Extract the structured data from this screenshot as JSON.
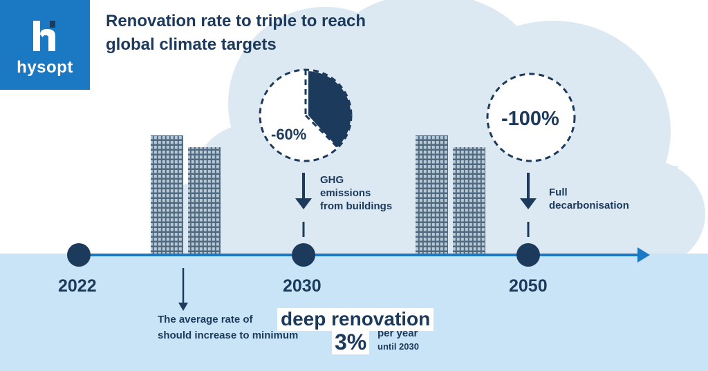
{
  "logo": {
    "text": "hysopt"
  },
  "title": {
    "line1": "Renovation rate to triple to reach",
    "line2": "global climate targets"
  },
  "milestones": {
    "m2030": {
      "percent": "-60%",
      "note": "GHG\nemissions\nfrom buildings"
    },
    "m2050": {
      "percent": "-100%",
      "note": "Full\ndecarbonisation"
    }
  },
  "timeline": {
    "years": [
      "2022",
      "2030",
      "2050"
    ]
  },
  "bottom": {
    "line1": "The average rate of",
    "highlight": "deep renovation",
    "line2": "should increase to minimum",
    "rate": "3%",
    "per_year": "per year",
    "until": "until 2030"
  },
  "colors": {
    "navy": "#1b3a5c",
    "brand_blue": "#1b78c2",
    "sky": "#c9e3f7",
    "cloud": "#dce8f2",
    "arrow_blue": "#1b78c2"
  }
}
